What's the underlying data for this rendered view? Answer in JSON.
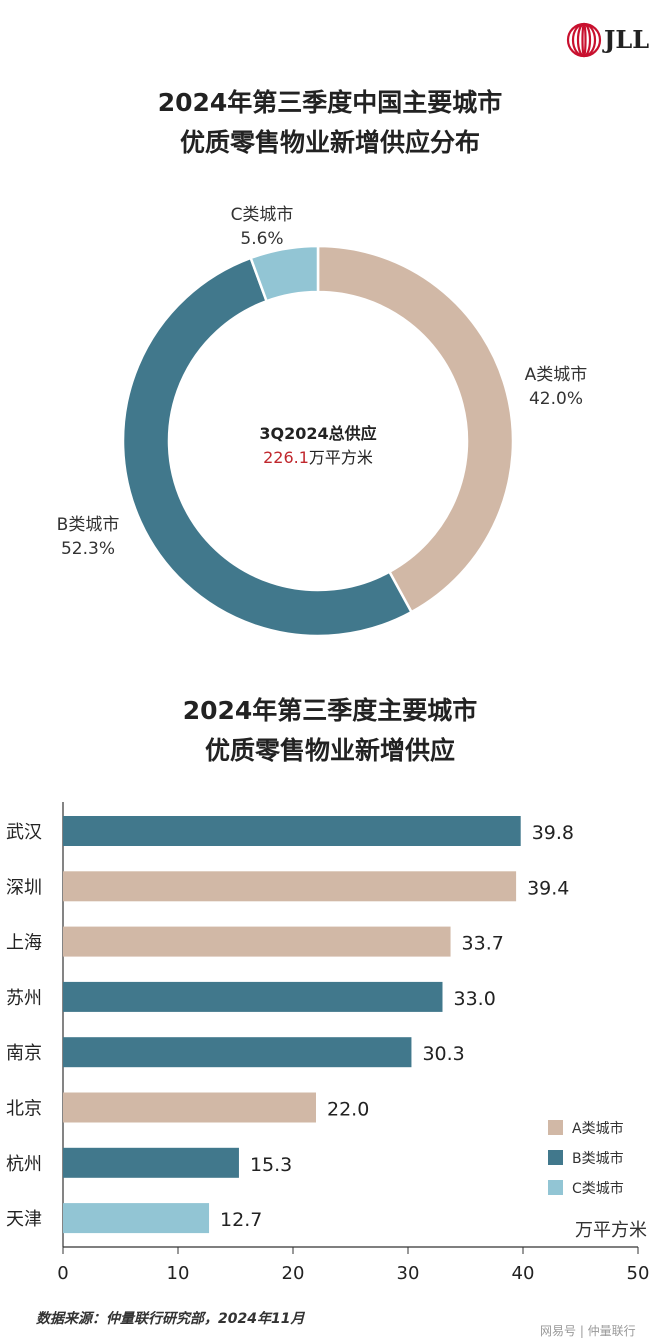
{
  "logo": {
    "text": "JLL",
    "color": "#c8102e"
  },
  "chart_data": [
    {
      "type": "pie",
      "donut": true,
      "title": [
        "2024年第三季度中国主要城市",
        "优质零售物业新增供应分布"
      ],
      "center_label": {
        "line1": "3Q2024总供应",
        "value": "226.1",
        "unit": "万平方米",
        "value_color": "#c0272d"
      },
      "slices": [
        {
          "name": "A类城市",
          "value": 42.0,
          "label": "42.0%",
          "color": "#d1b8a6"
        },
        {
          "name": "B类城市",
          "value": 52.3,
          "label": "52.3%",
          "color": "#41788c"
        },
        {
          "name": "C类城市",
          "value": 5.6,
          "label": "5.6%",
          "color": "#92c5d4"
        }
      ]
    },
    {
      "type": "bar",
      "orientation": "horizontal",
      "title": [
        "2024年第三季度主要城市",
        "优质零售物业新增供应"
      ],
      "categories": [
        "武汉",
        "深圳",
        "上海",
        "苏州",
        "南京",
        "北京",
        "杭州",
        "天津"
      ],
      "values": [
        39.8,
        39.4,
        33.7,
        33.0,
        30.3,
        22.0,
        15.3,
        12.7
      ],
      "value_labels": [
        "39.8",
        "39.4",
        "33.7",
        "33.0",
        "30.3",
        "22.0",
        "15.3",
        "12.7"
      ],
      "classes": [
        "B",
        "A",
        "A",
        "B",
        "B",
        "A",
        "B",
        "C"
      ],
      "legend": [
        {
          "key": "A",
          "name": "A类城市",
          "color": "#d1b8a6"
        },
        {
          "key": "B",
          "name": "B类城市",
          "color": "#41788c"
        },
        {
          "key": "C",
          "name": "C类城市",
          "color": "#92c5d4"
        }
      ],
      "legend_position": "bottom-right",
      "unit": "万平方米",
      "xlim": [
        0,
        50
      ],
      "xticks": [
        "0",
        "10",
        "20",
        "30",
        "40",
        "50"
      ],
      "grid": false
    }
  ],
  "footer": {
    "source": "数据来源：仲量联行研究部，2024年11月",
    "watermark": "网易号 | 仲量联行"
  }
}
